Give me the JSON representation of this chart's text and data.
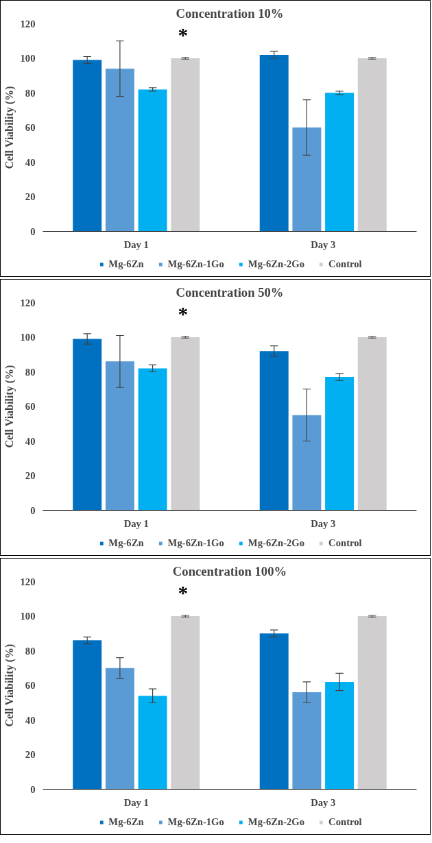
{
  "chart_data": [
    {
      "type": "bar",
      "title": "Concentration 10%",
      "ylabel": "Cell Viability (%)",
      "categories": [
        "Day 1",
        "Day 3"
      ],
      "ylim": [
        0,
        120
      ],
      "yticks": [
        0,
        20,
        40,
        60,
        80,
        100,
        120
      ],
      "grid": false,
      "legend": "bottom",
      "series": [
        {
          "name": "Mg-6Zn",
          "color": "#0070c0",
          "values": [
            99,
            102
          ],
          "errors": [
            2,
            2
          ]
        },
        {
          "name": "Mg-6Zn-1Go",
          "color": "#5b9bd5",
          "values": [
            94,
            60
          ],
          "errors": [
            16,
            16
          ]
        },
        {
          "name": "Mg-6Zn-2Go",
          "color": "#00b0f0",
          "values": [
            82,
            80
          ],
          "errors": [
            1,
            1
          ]
        },
        {
          "name": "Control",
          "color": "#d0cece",
          "values": [
            100,
            100
          ],
          "errors": [
            0.5,
            0.5
          ]
        }
      ],
      "annotations": [
        "*"
      ]
    },
    {
      "type": "bar",
      "title": "Concentration 50%",
      "ylabel": "Cell Viability (%)",
      "categories": [
        "Day 1",
        "Day 3"
      ],
      "ylim": [
        0,
        120
      ],
      "yticks": [
        0,
        20,
        40,
        60,
        80,
        100,
        120
      ],
      "grid": false,
      "legend": "bottom",
      "series": [
        {
          "name": "Mg-6Zn",
          "color": "#0070c0",
          "values": [
            99,
            92
          ],
          "errors": [
            3,
            3
          ]
        },
        {
          "name": "Mg-6Zn-1Go",
          "color": "#5b9bd5",
          "values": [
            86,
            55
          ],
          "errors": [
            15,
            15
          ]
        },
        {
          "name": "Mg-6Zn-2Go",
          "color": "#00b0f0",
          "values": [
            82,
            77
          ],
          "errors": [
            2,
            2
          ]
        },
        {
          "name": "Control",
          "color": "#d0cece",
          "values": [
            100,
            100
          ],
          "errors": [
            0.5,
            0.5
          ]
        }
      ],
      "annotations": [
        "*"
      ]
    },
    {
      "type": "bar",
      "title": "Concentration 100%",
      "ylabel": "Cell Viability (%)",
      "categories": [
        "Day 1",
        "Day 3"
      ],
      "ylim": [
        0,
        120
      ],
      "yticks": [
        0,
        20,
        40,
        60,
        80,
        100,
        120
      ],
      "grid": false,
      "legend": "bottom",
      "series": [
        {
          "name": "Mg-6Zn",
          "color": "#0070c0",
          "values": [
            86,
            90
          ],
          "errors": [
            2,
            2
          ]
        },
        {
          "name": "Mg-6Zn-1Go",
          "color": "#5b9bd5",
          "values": [
            70,
            56
          ],
          "errors": [
            6,
            6
          ]
        },
        {
          "name": "Mg-6Zn-2Go",
          "color": "#00b0f0",
          "values": [
            54,
            62
          ],
          "errors": [
            4,
            5
          ]
        },
        {
          "name": "Control",
          "color": "#d0cece",
          "values": [
            100,
            100
          ],
          "errors": [
            0.5,
            0.5
          ]
        }
      ],
      "annotations": [
        "*"
      ]
    }
  ]
}
